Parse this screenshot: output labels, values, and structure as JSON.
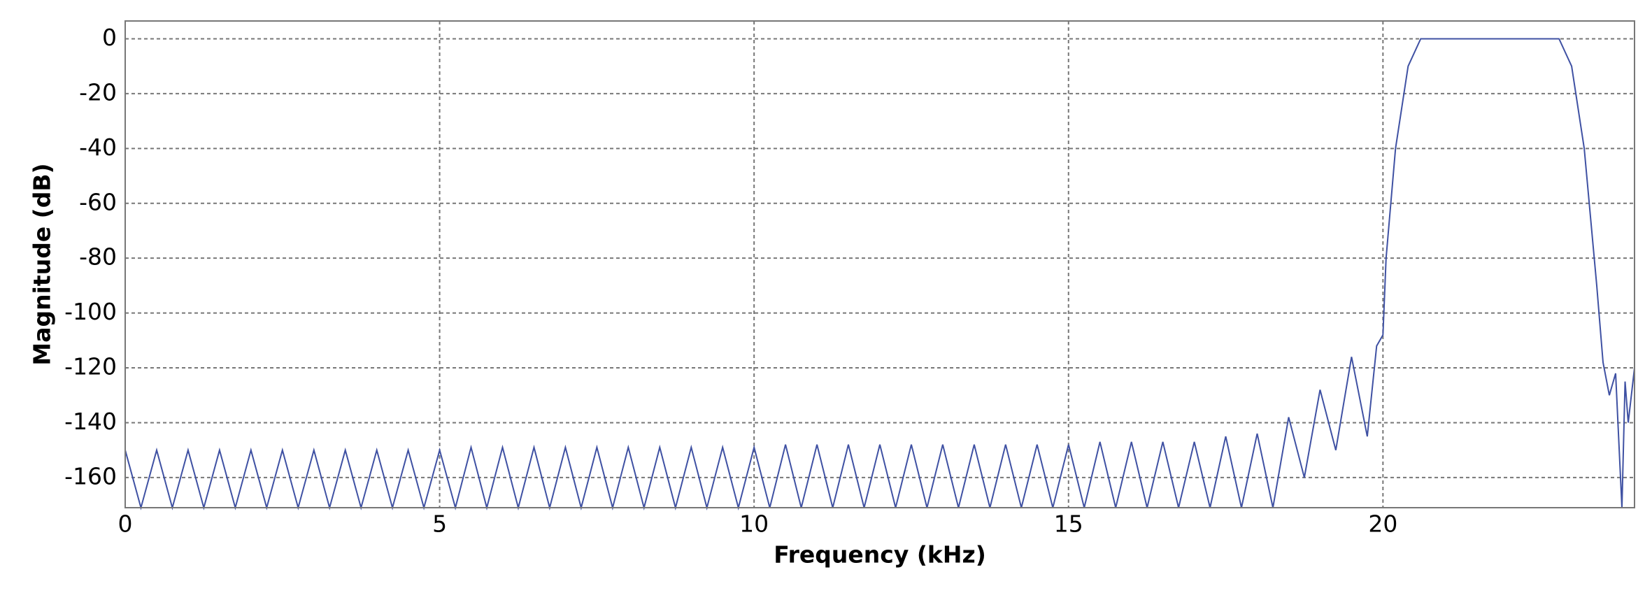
{
  "chart_data": {
    "type": "line",
    "xlabel": "Frequency (kHz)",
    "ylabel": "Magnitude (dB)",
    "xlim": [
      0,
      24
    ],
    "ylim": [
      -171,
      6.5
    ],
    "xticks": [
      0,
      5,
      10,
      15,
      20
    ],
    "yticks": [
      0,
      -20,
      -40,
      -60,
      -80,
      -100,
      -120,
      -140,
      -160
    ],
    "grid": true,
    "x": [
      0,
      0.25,
      0.5,
      0.75,
      1,
      1.25,
      1.5,
      1.75,
      2,
      2.25,
      2.5,
      2.75,
      3,
      3.25,
      3.5,
      3.75,
      4,
      4.25,
      4.5,
      4.75,
      5,
      5.25,
      5.5,
      5.75,
      6,
      6.25,
      6.5,
      6.75,
      7,
      7.25,
      7.5,
      7.75,
      8,
      8.25,
      8.5,
      8.75,
      9,
      9.25,
      9.5,
      9.75,
      10,
      10.25,
      10.5,
      10.75,
      11,
      11.25,
      11.5,
      11.75,
      12,
      12.25,
      12.5,
      12.75,
      13,
      13.25,
      13.5,
      13.75,
      14,
      14.25,
      14.5,
      14.75,
      15,
      15.25,
      15.5,
      15.75,
      16,
      16.25,
      16.5,
      16.75,
      17,
      17.25,
      17.5,
      17.75,
      18,
      18.25,
      18.5,
      18.75,
      19,
      19.25,
      19.5,
      19.75,
      19.9,
      20,
      20.05,
      20.2,
      20.4,
      20.6,
      22.8,
      23,
      23.2,
      23.4,
      23.5,
      23.6,
      23.7,
      23.8,
      23.85,
      23.9,
      24
    ],
    "series": [
      {
        "color": "#3f51a3",
        "values": [
          -150,
          -171,
          -150,
          -171,
          -150,
          -171,
          -150,
          -171,
          -150,
          -171,
          -150,
          -171,
          -150,
          -171,
          -150,
          -171,
          -150,
          -171,
          -150,
          -171,
          -150,
          -171,
          -149,
          -171,
          -149,
          -171,
          -149,
          -171,
          -149,
          -171,
          -149,
          -171,
          -149,
          -171,
          -149,
          -171,
          -149,
          -171,
          -149,
          -171,
          -149,
          -171,
          -148,
          -171,
          -148,
          -171,
          -148,
          -171,
          -148,
          -171,
          -148,
          -171,
          -148,
          -171,
          -148,
          -171,
          -148,
          -171,
          -148,
          -171,
          -148,
          -171,
          -147,
          -171,
          -147,
          -171,
          -147,
          -171,
          -147,
          -171,
          -145,
          -171,
          -144,
          -171,
          -138,
          -160,
          -128,
          -150,
          -116,
          -145,
          -112,
          -108,
          -80,
          -40,
          -10,
          0,
          0,
          -10,
          -40,
          -90,
          -118,
          -130,
          -122,
          -171,
          -125,
          -140,
          -120
        ]
      }
    ]
  }
}
